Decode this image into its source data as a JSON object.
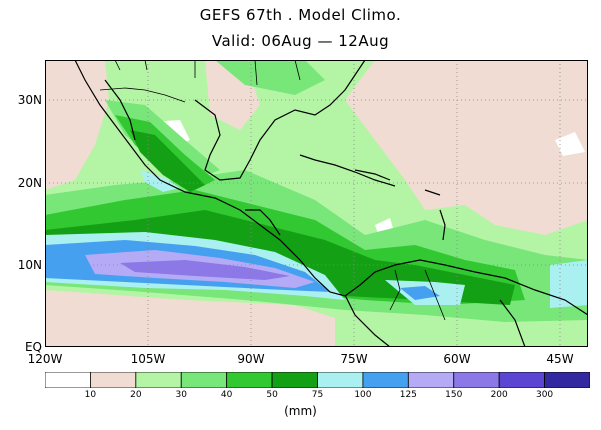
{
  "title": {
    "line1": "GEFS 67th . Model Climo.",
    "line2": "Valid: 06Aug — 12Aug"
  },
  "axes": {
    "lat_labels": [
      "30N",
      "20N",
      "10N",
      "EQ"
    ],
    "lon_labels": [
      "120W",
      "105W",
      "90W",
      "75W",
      "60W",
      "45W"
    ]
  },
  "map": {
    "lon_range": [
      -120,
      -41
    ],
    "lat_range": [
      0,
      35
    ],
    "gridlines": "dotted"
  },
  "colorbar": {
    "labels": [
      "10",
      "20",
      "30",
      "40",
      "50",
      "75",
      "100",
      "125",
      "150",
      "200",
      "300"
    ],
    "colors": [
      "#ffffff",
      "#f0dcd2",
      "#b4f5a5",
      "#78e678",
      "#32c832",
      "#14a014",
      "#aaf0f0",
      "#46a0f0",
      "#b4aaf5",
      "#8c78e6",
      "#5a46d2",
      "#3228a0"
    ],
    "units": "(mm)"
  }
}
